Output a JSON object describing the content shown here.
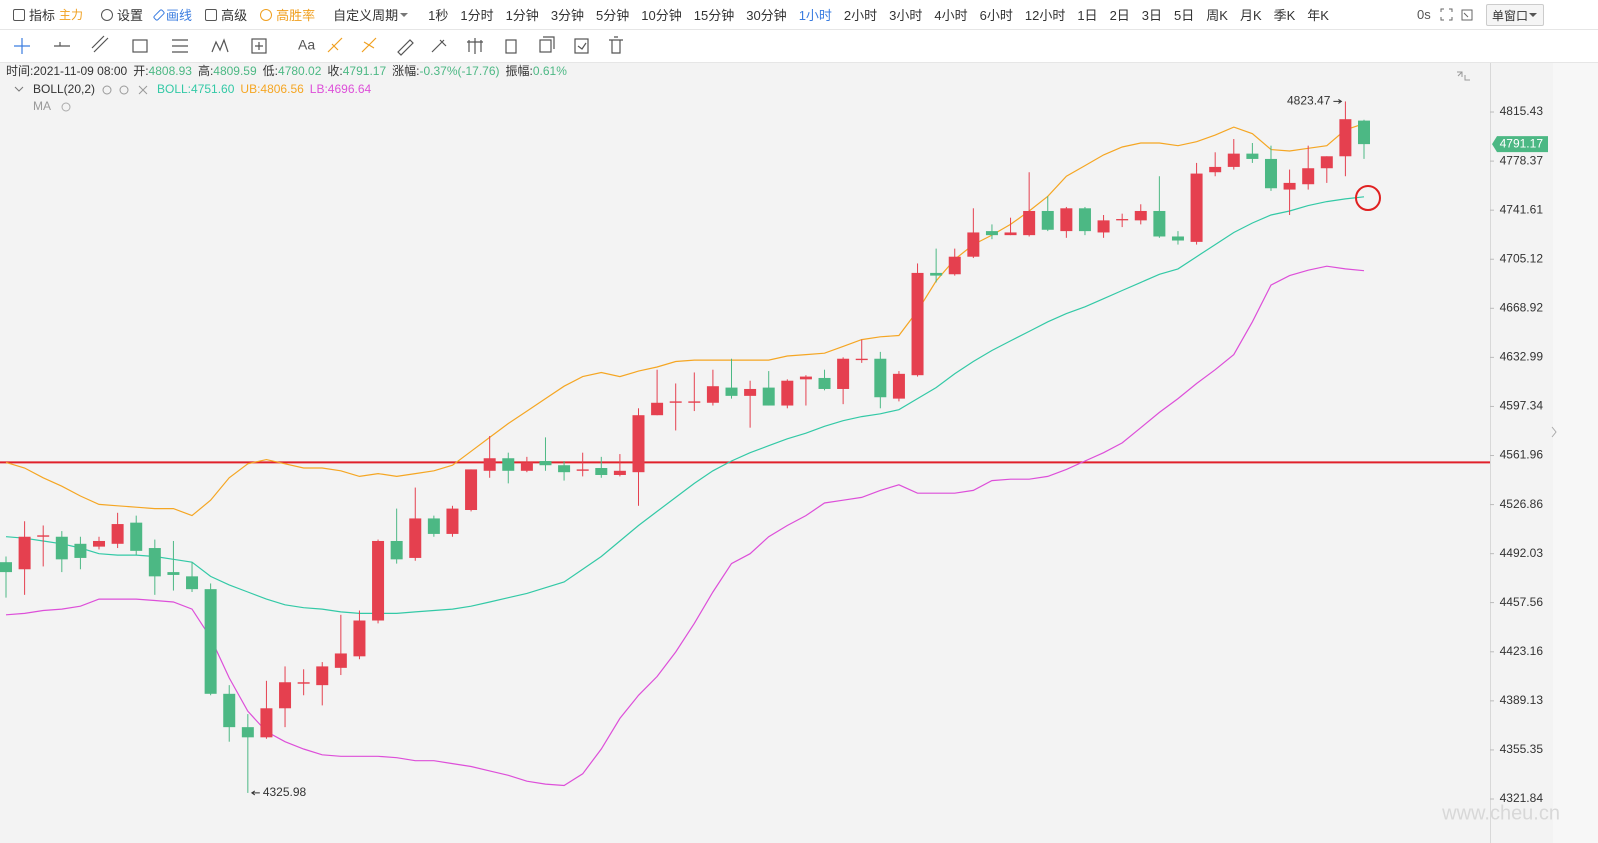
{
  "toolbar": {
    "menu": [
      {
        "text": "指标"
      },
      {
        "text": "主力",
        "color": "#f0a020"
      },
      {
        "text": "设置"
      },
      {
        "text": "画线",
        "color": "#3b7de0"
      },
      {
        "text": "高级"
      },
      {
        "text": "高胜率",
        "color": "#f0a020"
      },
      {
        "text": "自定义周期"
      }
    ],
    "periods": [
      {
        "text": "1秒"
      },
      {
        "text": "1分时"
      },
      {
        "text": "1分钟"
      },
      {
        "text": "3分钟"
      },
      {
        "text": "5分钟"
      },
      {
        "text": "10分钟"
      },
      {
        "text": "15分钟"
      },
      {
        "text": "30分钟"
      },
      {
        "text": "1小时",
        "color": "#3b7de0"
      },
      {
        "text": "2小时"
      },
      {
        "text": "3小时"
      },
      {
        "text": "4小时"
      },
      {
        "text": "6小时"
      },
      {
        "text": "12小时"
      },
      {
        "text": "1日"
      },
      {
        "text": "2日"
      },
      {
        "text": "3日"
      },
      {
        "text": "5日"
      },
      {
        "text": "周K"
      },
      {
        "text": "月K"
      },
      {
        "text": "季K"
      },
      {
        "text": "年K"
      }
    ],
    "countdown": "0s",
    "window": "单窗口",
    "text_tool": "Aa"
  },
  "chart_data": {
    "type": "candlestick",
    "info": [
      {
        "label": "时间:",
        "value": "2021-11-09 08:00"
      },
      {
        "label": "开:",
        "value": "4808.93"
      },
      {
        "label": "高:",
        "value": "4809.59"
      },
      {
        "label": "低:",
        "value": "4780.02"
      },
      {
        "label": "收:",
        "value": "4791.17"
      },
      {
        "label": "涨幅:",
        "value": "-0.37%(-17.76)"
      },
      {
        "label": "振幅:",
        "value": "0.61%"
      }
    ],
    "indicator": "BOLL(20,2)",
    "legend": [
      "BOLL:4751.60",
      "UB:4806.56",
      "LB:4696.64"
    ],
    "ma_label": "MA",
    "watermark": "www.cheu.cn",
    "up_color": "#e5404f",
    "down_color": "#4cb884",
    "open": [
      4486,
      4481,
      4504,
      4504,
      4499,
      4497,
      4499,
      4514,
      4496,
      4479,
      4476,
      4467,
      4394,
      4371,
      4364,
      4384,
      4401,
      4400,
      4412,
      4420,
      4445,
      4501,
      4489,
      4517,
      4506,
      4523,
      4551,
      4560,
      4551,
      4558,
      4555,
      4551,
      4553,
      4548,
      4550,
      4591,
      4600,
      4600,
      4600,
      4611,
      4605,
      4611,
      4598,
      4617,
      4618,
      4610,
      4631,
      4632,
      4603,
      4620,
      4695,
      4694,
      4707,
      4726,
      4723,
      4723,
      4741,
      4726,
      4743,
      4725,
      4734,
      4734,
      4741,
      4722,
      4718,
      4770,
      4774,
      4784,
      4780,
      4757,
      4761,
      4773,
      4782,
      4808.93
    ],
    "high": [
      4490,
      4515,
      4512,
      4508,
      4504,
      4504,
      4521,
      4519,
      4502,
      4501,
      4486,
      4471,
      4400,
      4380,
      4403,
      4413,
      4411,
      4416,
      4449,
      4452,
      4502,
      4524,
      4539,
      4519,
      4526,
      4552,
      4576,
      4564,
      4561,
      4575,
      4558,
      4564,
      4561,
      4563,
      4596,
      4624,
      4614,
      4622,
      4624,
      4632,
      4616,
      4623,
      4617,
      4620,
      4624,
      4633,
      4646,
      4637,
      4623,
      4702,
      4713,
      4713,
      4743,
      4731,
      4736,
      4770,
      4752,
      4744,
      4744,
      4738,
      4739,
      4746,
      4767,
      4726,
      4777,
      4785,
      4795,
      4792,
      4790,
      4772,
      4790,
      4782,
      4823.47,
      4809.59
    ],
    "low": [
      4461,
      4463,
      4483,
      4479,
      4481,
      4495,
      4496,
      4491,
      4463,
      4466,
      4465,
      4393,
      4361,
      4325.98,
      4363,
      4371,
      4393,
      4386,
      4407,
      4418,
      4443,
      4485,
      4487,
      4504,
      4504,
      4522,
      4546,
      4542,
      4550,
      4551,
      4544,
      4547,
      4546,
      4547,
      4526,
      4591,
      4580,
      4594,
      4598,
      4603,
      4582,
      4598,
      4596,
      4598,
      4609,
      4599,
      4629,
      4596,
      4601,
      4619,
      4688,
      4693,
      4706,
      4720,
      4723,
      4722,
      4726,
      4721,
      4723,
      4721,
      4729,
      4731,
      4721,
      4716,
      4716,
      4767,
      4772,
      4777,
      4756,
      4738,
      4757,
      4762,
      4767,
      4780.02
    ],
    "close": [
      4479,
      4504,
      4505,
      4488,
      4489,
      4501,
      4513,
      4494,
      4476,
      4477,
      4467,
      4394,
      4371,
      4364,
      4384,
      4402,
      4402,
      4413,
      4422,
      4445,
      4501,
      4488,
      4517,
      4506,
      4524,
      4552,
      4560,
      4551,
      4557,
      4555,
      4550,
      4552,
      4548,
      4551,
      4591,
      4600,
      4601,
      4601,
      4612,
      4605,
      4610,
      4598,
      4616,
      4619,
      4610,
      4632,
      4632,
      4604,
      4621,
      4695,
      4693,
      4707,
      4725,
      4723,
      4725,
      4741,
      4727,
      4743,
      4726,
      4734,
      4735,
      4741,
      4722,
      4719,
      4769,
      4774,
      4784,
      4780,
      4758,
      4762,
      4773,
      4782,
      4810,
      4791.17
    ],
    "series": [
      {
        "name": "BOLL",
        "color": "#33c9a6",
        "values": [
          4504,
          4503,
          4501,
          4499,
          4496,
          4492,
          4491,
          4491,
          4490,
          4488,
          4486,
          4476,
          4470,
          4465,
          4460,
          4456,
          4454,
          4453,
          4451,
          4450,
          4450,
          4450,
          4451,
          4452,
          4453,
          4455,
          4458,
          4461,
          4464,
          4468,
          4472,
          4481,
          4490,
          4501,
          4512,
          4522,
          4532,
          4542,
          4551,
          4558,
          4564,
          4569,
          4574,
          4578,
          4583,
          4587,
          4590,
          4592,
          4595,
          4603,
          4611,
          4621,
          4630,
          4638,
          4645,
          4652,
          4659,
          4665,
          4670,
          4676,
          4682,
          4688,
          4694,
          4698,
          4707,
          4716,
          4725,
          4732,
          4738,
          4741,
          4745,
          4748,
          4750,
          4751.6
        ]
      },
      {
        "name": "UB",
        "color": "#f5a623",
        "values": [
          4557,
          4553,
          4546,
          4540,
          4533,
          4527,
          4526,
          4525,
          4524,
          4524,
          4519,
          4530,
          4546,
          4556,
          4559,
          4556,
          4553,
          4553,
          4551,
          4547,
          4549,
          4547,
          4549,
          4551,
          4555,
          4565,
          4575,
          4585,
          4594,
          4603,
          4612,
          4619,
          4622,
          4619,
          4623,
          4626,
          4630,
          4631,
          4631,
          4631,
          4631,
          4631,
          4634,
          4635,
          4636,
          4641,
          4646,
          4648,
          4649,
          4667,
          4689,
          4705,
          4716,
          4723,
          4731,
          4741,
          4752,
          4767,
          4775,
          4783,
          4789,
          4792,
          4792,
          4790,
          4793,
          4798,
          4804,
          4799,
          4787,
          4786,
          4788,
          4790,
          4802,
          4806.56
        ]
      },
      {
        "name": "LB",
        "color": "#dd4fd9",
        "values": [
          4449,
          4450,
          4452,
          4453,
          4455,
          4460,
          4460,
          4460,
          4459,
          4458,
          4453,
          4433,
          4405,
          4382,
          4368,
          4361,
          4356,
          4352,
          4351,
          4351,
          4351,
          4350,
          4348,
          4348,
          4346,
          4344,
          4341,
          4338,
          4334,
          4332,
          4331,
          4339,
          4356,
          4377,
          4393,
          4406,
          4423,
          4443,
          4465,
          4485,
          4492,
          4504,
          4512,
          4519,
          4528,
          4530,
          4532,
          4537,
          4541,
          4535,
          4535,
          4535,
          4537,
          4544,
          4545,
          4545,
          4547,
          4552,
          4558,
          4564,
          4571,
          4582,
          4593,
          4603,
          4614,
          4624,
          4635,
          4659,
          4686,
          4693,
          4697,
          4700,
          4698,
          4696.64
        ]
      }
    ],
    "horizontal_line": 4557,
    "log_scale": true,
    "ylim": [
      4300.8,
      4853.5
    ],
    "yticks": [
      4815.43,
      4778.37,
      4741.61,
      4705.12,
      4668.92,
      4632.99,
      4597.34,
      4561.96,
      4526.86,
      4492.03,
      4457.56,
      4423.16,
      4389.13,
      4355.35,
      4321.84
    ]
  }
}
